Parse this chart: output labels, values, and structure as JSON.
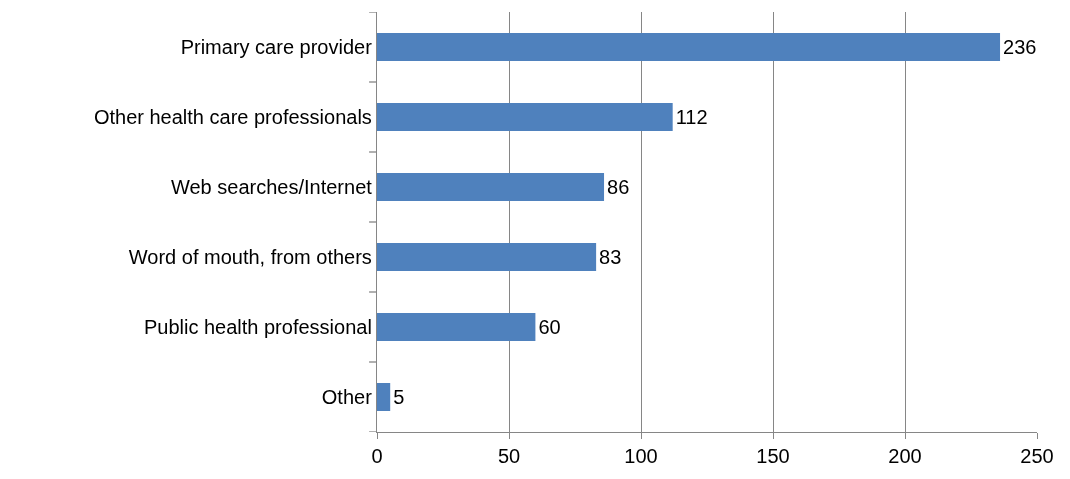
{
  "chart_data": {
    "type": "bar",
    "orientation": "horizontal",
    "categories": [
      "Primary care provider",
      "Other health care professionals",
      "Web searches/Internet",
      "Word of mouth, from others",
      "Public health professional",
      "Other"
    ],
    "values": [
      236,
      112,
      86,
      83,
      60,
      5
    ],
    "color": "#4f81bd",
    "xlim": [
      0,
      250
    ],
    "xticks": [
      0,
      50,
      100,
      150,
      200,
      250
    ],
    "grid": "x",
    "data_labels": true,
    "legend": false
  }
}
